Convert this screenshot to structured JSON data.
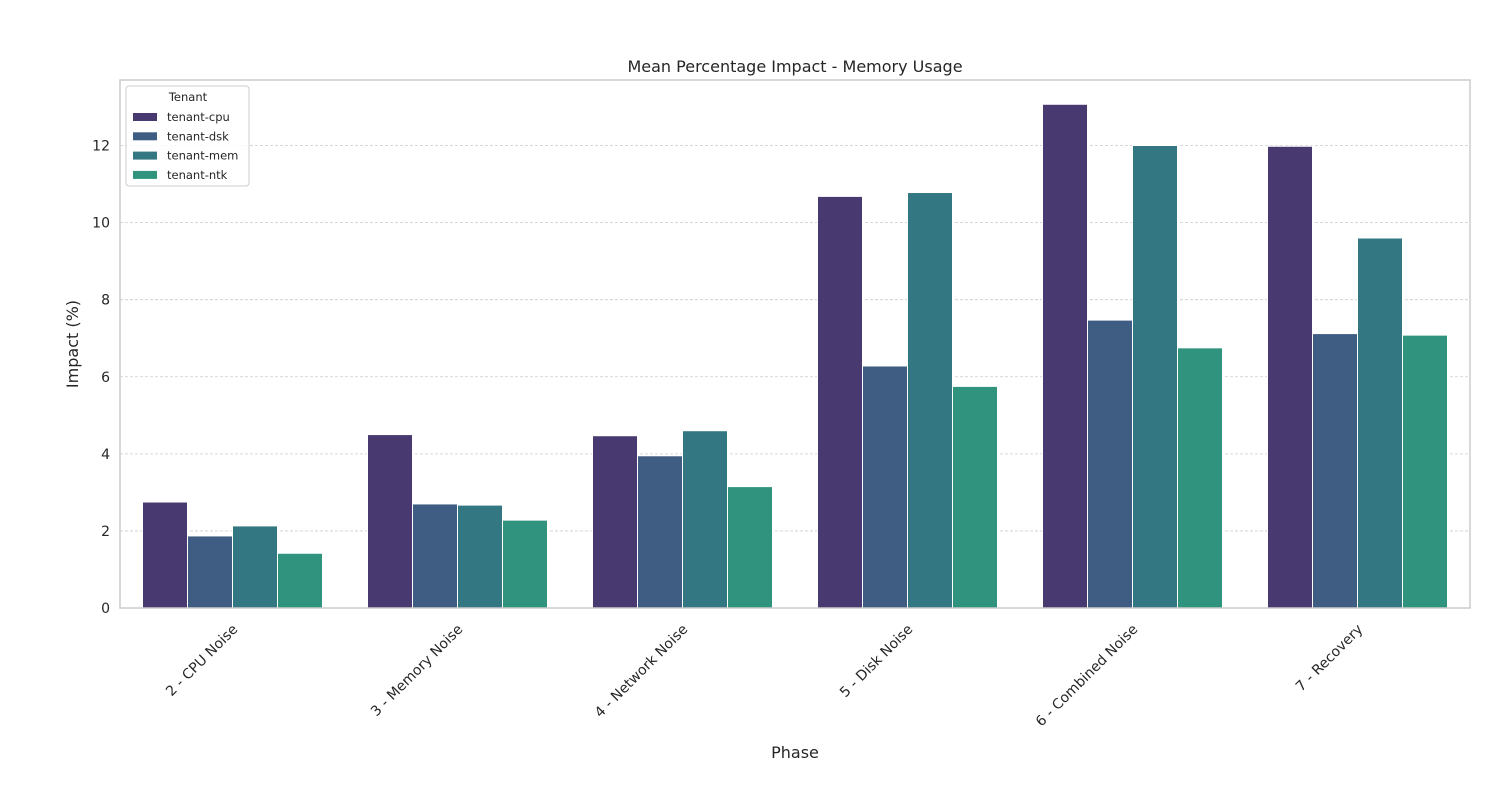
{
  "chart_data": {
    "type": "bar",
    "title": "Mean Percentage Impact - Memory Usage",
    "xlabel": "Phase",
    "ylabel": "Impact (%)",
    "categories": [
      "2 - CPU Noise",
      "3 - Memory Noise",
      "4 - Network Noise",
      "5 - Disk Noise",
      "6 - Combined Noise",
      "7 - Recovery"
    ],
    "series": [
      {
        "name": "tenant-cpu",
        "color": "#483a70",
        "values": [
          2.75,
          4.5,
          4.47,
          10.68,
          13.07,
          11.98
        ]
      },
      {
        "name": "tenant-dsk",
        "color": "#3f5d83",
        "values": [
          1.87,
          2.7,
          3.95,
          6.28,
          7.47,
          7.12
        ]
      },
      {
        "name": "tenant-mem",
        "color": "#327781",
        "values": [
          2.13,
          2.67,
          4.6,
          10.78,
          12.0,
          9.6
        ]
      },
      {
        "name": "tenant-ntk",
        "color": "#2f937d",
        "values": [
          1.42,
          2.28,
          3.15,
          5.75,
          6.75,
          7.08
        ]
      }
    ],
    "ylim": [
      0,
      13.7
    ],
    "yticks": [
      0,
      2,
      4,
      6,
      8,
      10,
      12
    ],
    "grid": "horizontal",
    "legend": {
      "title": "Tenant",
      "position": "top-left"
    }
  }
}
